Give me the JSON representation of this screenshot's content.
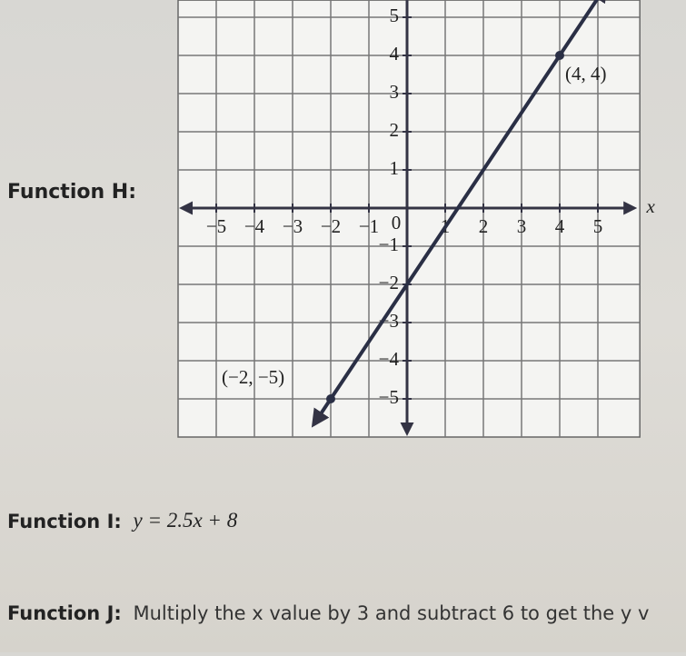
{
  "function_h": {
    "label": "Function H:",
    "graph": {
      "xlim": [
        -6,
        6.1
      ],
      "ylim": [
        -6,
        5.45
      ],
      "xticks": [
        {
          "value": -5,
          "label": "−5"
        },
        {
          "value": -4,
          "label": "−4"
        },
        {
          "value": -3,
          "label": "−3"
        },
        {
          "value": -2,
          "label": "−2"
        },
        {
          "value": -1,
          "label": "−1"
        },
        1,
        2,
        3,
        4,
        5
      ],
      "yticks": [
        5,
        4,
        3,
        2,
        1,
        {
          "value": -1,
          "label": "−1"
        },
        {
          "value": -2,
          "label": "−2"
        },
        {
          "value": -3,
          "label": "−3"
        },
        {
          "value": -4,
          "label": "−4"
        },
        {
          "value": -5,
          "label": "−5"
        }
      ],
      "origin_label": "0",
      "x_axis_label": "x",
      "points": [
        {
          "x": -2,
          "y": -5,
          "label": "(−2, −5)"
        },
        {
          "x": 4,
          "y": 4,
          "label": "(4, 4)"
        }
      ]
    }
  },
  "function_i": {
    "label": "Function I:",
    "equation": "y = 2.5x + 8"
  },
  "function_j": {
    "label": "Function J:",
    "text": "Multiply the x value by 3 and subtract 6 to get the y v"
  }
}
